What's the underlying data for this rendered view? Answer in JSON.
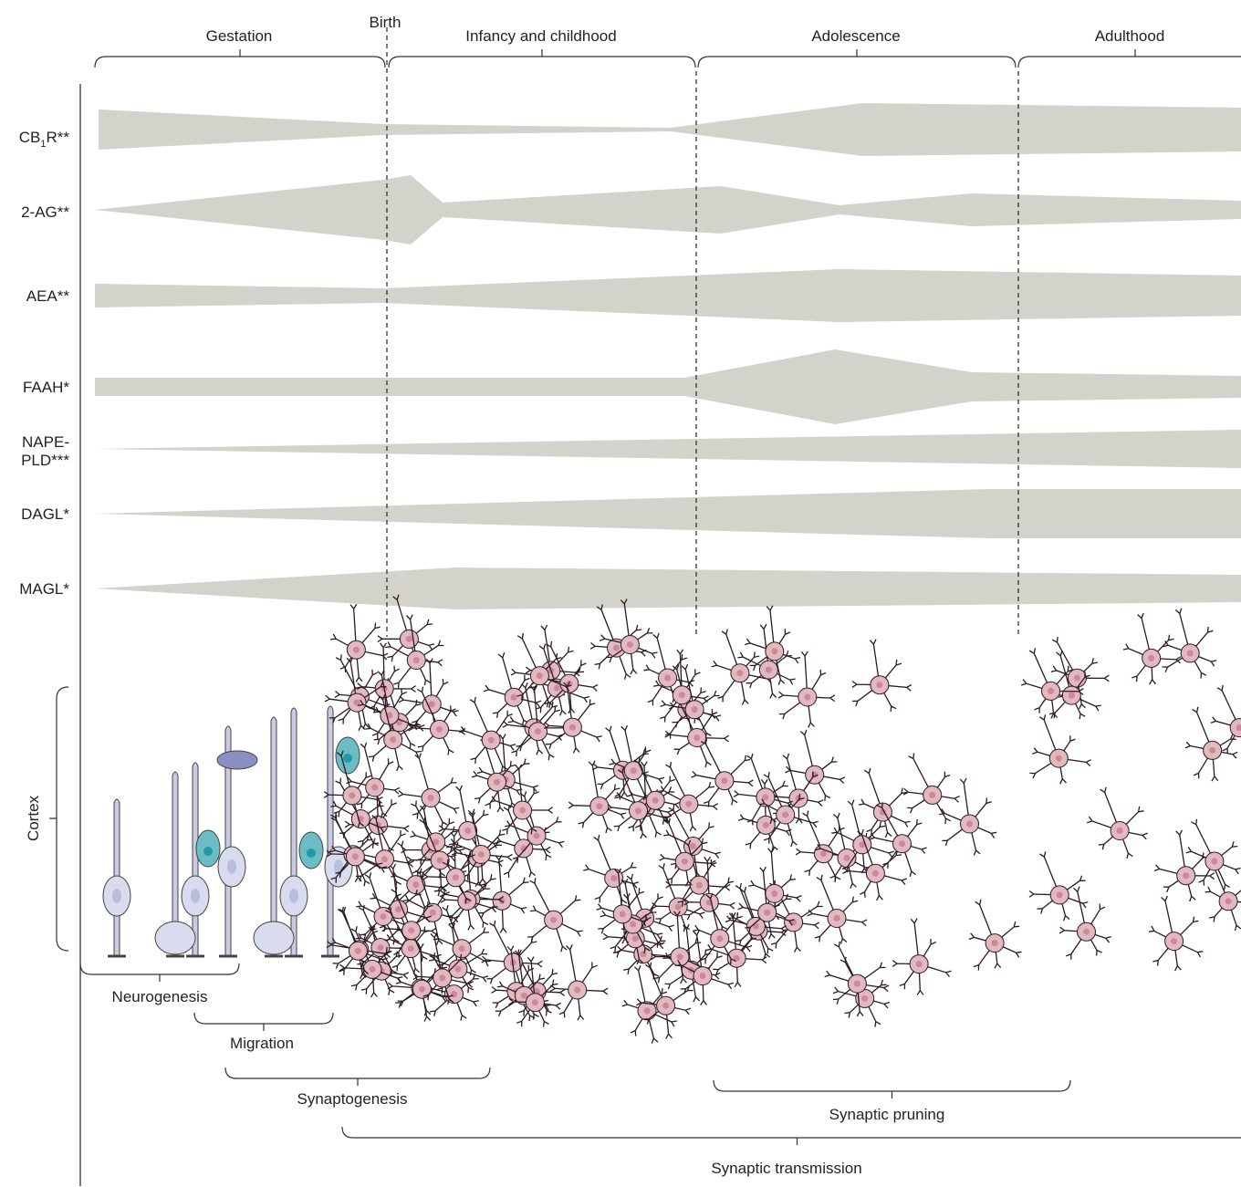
{
  "stages": {
    "gestation": "Gestation",
    "birth": "Birth",
    "infancy": "Infancy and childhood",
    "adolescence": "Adolescence",
    "adulthood": "Adulthood"
  },
  "rows": [
    {
      "parts": [
        "CB",
        "1",
        "R**"
      ]
    },
    {
      "label": "2-AG**"
    },
    {
      "label": "AEA**"
    },
    {
      "label": "FAAH*"
    },
    {
      "lines": [
        "NAPE-",
        "PLD***"
      ]
    },
    {
      "label": "DAGL*"
    },
    {
      "label": "MAGL*"
    }
  ],
  "cortex": "Cortex",
  "processes": {
    "neurogenesis": "Neurogenesis",
    "migration": "Migration",
    "synaptogenesis": "Synaptogenesis",
    "pruning": "Synaptic pruning",
    "transmission": "Synaptic transmission"
  }
}
